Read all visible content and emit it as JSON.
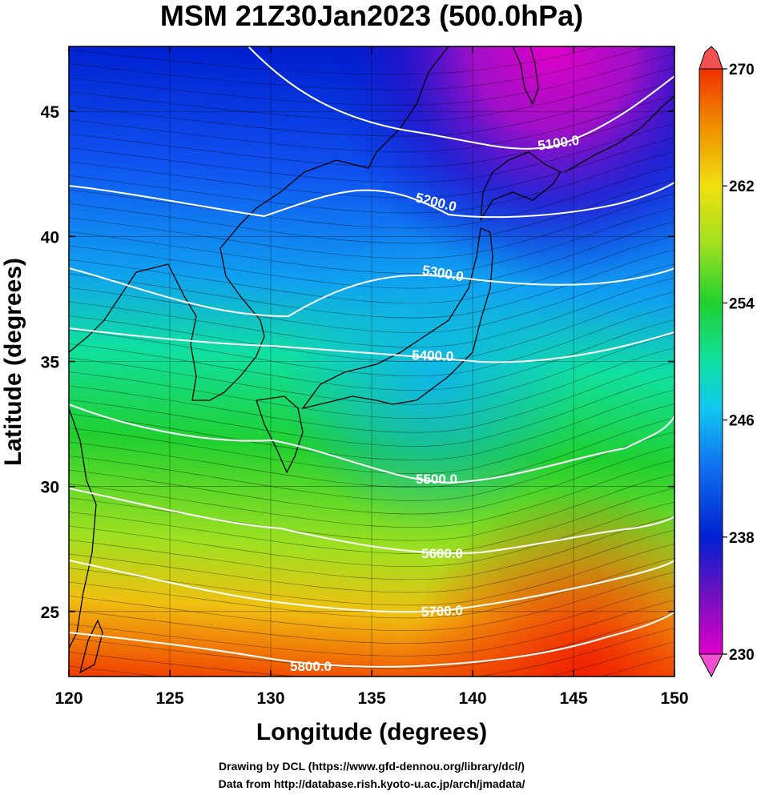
{
  "title": "MSM 21Z30Jan2023 (500.0hPa)",
  "x_axis": {
    "label": "Longitude (degrees)",
    "range": [
      120,
      150
    ],
    "ticks": [
      "120",
      "125",
      "130",
      "135",
      "140",
      "145",
      "150"
    ]
  },
  "y_axis": {
    "label": "Latitude  (degrees)",
    "range": [
      22.4,
      47.6
    ],
    "ticks": [
      "25",
      "30",
      "35",
      "40",
      "45"
    ]
  },
  "colorbar": {
    "min": 230,
    "max": 270,
    "labels": [
      "270",
      "262",
      "254",
      "246",
      "238",
      "230"
    ],
    "colors": [
      "#e000c8",
      "#7010c0",
      "#0020d0",
      "#1070f0",
      "#10c8f0",
      "#10e0a0",
      "#20d030",
      "#a0e020",
      "#f0e010",
      "#f09000",
      "#f03000"
    ]
  },
  "contours": [
    {
      "value": 5100,
      "label": "5100.0"
    },
    {
      "value": 5200,
      "label": "5200.0"
    },
    {
      "value": 5300,
      "label": "5300.0"
    },
    {
      "value": 5400,
      "label": "5400.0"
    },
    {
      "value": 5500,
      "label": "5500.0"
    },
    {
      "value": 5600,
      "label": "5600.0"
    },
    {
      "value": 5700,
      "label": "5700.0"
    },
    {
      "value": 5800,
      "label": "5800.0"
    }
  ],
  "credits": {
    "line1": "Drawing by DCL (https://www.gfd-dennou.org/library/dcl/)",
    "line2": "Data from http://database.rish.kyoto-u.ac.jp/arch/jmadata/"
  }
}
